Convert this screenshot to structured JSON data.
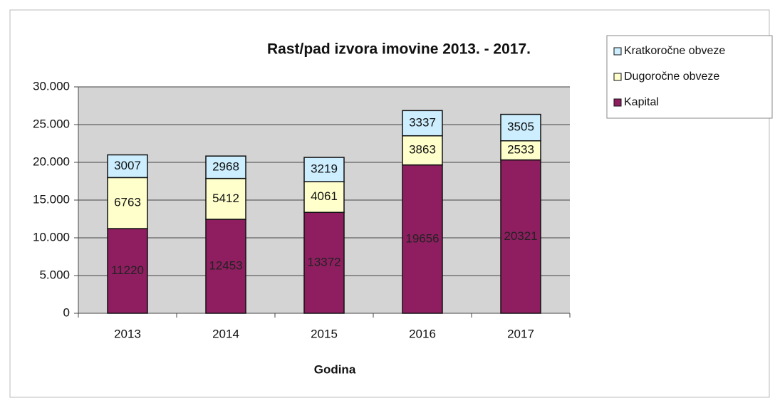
{
  "chart_data": {
    "type": "stacked_bar",
    "title": "Rast/pad izvora imovine 2013. - 2017.",
    "x_label": "Godina",
    "categories": [
      "2013",
      "2014",
      "2015",
      "2016",
      "2017"
    ],
    "series": [
      {
        "name": "Kapital",
        "color": "#8e1e60",
        "values": [
          11220,
          12453,
          13372,
          19656,
          20321
        ]
      },
      {
        "name": "Dugoročne obveze",
        "color": "#ffffcc",
        "values": [
          6763,
          5412,
          4061,
          3863,
          2533
        ]
      },
      {
        "name": "Kratkoročne obveze",
        "color": "#cceeff",
        "values": [
          3007,
          2968,
          3219,
          3337,
          3505
        ]
      }
    ],
    "ylim": [
      0,
      30000
    ],
    "yticks": [
      0,
      {
        "value": 5000,
        "label": "5.000"
      },
      {
        "value": 10000,
        "label": "10.000"
      },
      {
        "value": 15000,
        "label": "15.000"
      },
      {
        "value": 20000,
        "label": "20.000"
      },
      {
        "value": 25000,
        "label": "25.000"
      },
      {
        "value": 30000,
        "label": "30.000"
      }
    ],
    "grid": true,
    "legend": "right"
  }
}
